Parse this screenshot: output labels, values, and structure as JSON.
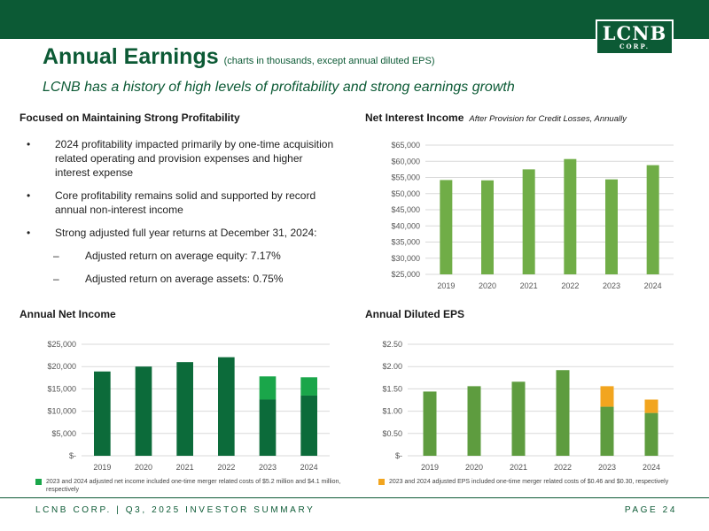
{
  "header": {
    "title": "Annual Earnings",
    "title_note": "(charts in thousands, except annual diluted EPS)",
    "subtitle": "LCNB has a history of high levels of profitability and strong earnings growth",
    "logo_main": "LCNB",
    "logo_sub": "CORP."
  },
  "profitability": {
    "heading": "Focused on Maintaining Strong Profitability",
    "bullets": [
      "2024 profitability impacted primarily by one-time acquisition related operating and provision expenses and higher interest expense",
      "Core profitability remains solid and supported by record annual non-interest income",
      "Strong adjusted full year returns at December 31, 2024:"
    ],
    "bullet_symbol": "•",
    "sub_symbol": "–",
    "sub_bullets": [
      "Adjusted return on average equity: 7.17%",
      "Adjusted return on average assets: 0.75%"
    ]
  },
  "nii_section": {
    "heading": "Net Interest Income",
    "heading_note": "After Provision for Credit Losses, Annually"
  },
  "ni_section": {
    "heading": "Annual Net Income"
  },
  "eps_section": {
    "heading": "Annual Diluted EPS"
  },
  "notes": {
    "ni": "2023 and 2024 adjusted net income included one-time merger related costs of $5.2 million and $4.1 million, respectively",
    "eps": "2023 and 2024 adjusted EPS included one-time merger related costs of $0.46 and $0.30, respectively"
  },
  "colors": {
    "brand": "#0c5a35",
    "nii_bar": "#70ad47",
    "ni_bar": "#0c6b3a",
    "ni_adj": "#1aa64a",
    "eps_bar": "#5e9c3f",
    "eps_adj": "#f2a51f"
  },
  "chart_data": [
    {
      "id": "nii",
      "type": "bar",
      "categories": [
        "2019",
        "2020",
        "2021",
        "2022",
        "2023",
        "2024"
      ],
      "values": [
        54200,
        54100,
        57500,
        60700,
        54400,
        58800
      ],
      "ylim": [
        25000,
        65000
      ],
      "yticks": [
        25000,
        30000,
        35000,
        40000,
        45000,
        50000,
        55000,
        60000,
        65000
      ],
      "ytick_labels": [
        "$25,000",
        "$30,000",
        "$35,000",
        "$40,000",
        "$45,000",
        "$50,000",
        "$55,000",
        "$60,000",
        "$65,000"
      ],
      "title": "Net Interest Income"
    },
    {
      "id": "ni",
      "type": "bar",
      "stacked": true,
      "categories": [
        "2019",
        "2020",
        "2021",
        "2022",
        "2023",
        "2024"
      ],
      "series": [
        {
          "name": "Net Income",
          "values": [
            18900,
            20000,
            21000,
            22100,
            12600,
            13500
          ]
        },
        {
          "name": "One-time merger related costs",
          "values": [
            0,
            0,
            0,
            0,
            5200,
            4100
          ]
        }
      ],
      "ylim": [
        0,
        25000
      ],
      "yticks": [
        0,
        5000,
        10000,
        15000,
        20000,
        25000
      ],
      "ytick_labels": [
        "$-",
        "$5,000",
        "$10,000",
        "$15,000",
        "$20,000",
        "$25,000"
      ],
      "title": "Annual Net Income"
    },
    {
      "id": "eps",
      "type": "bar",
      "stacked": true,
      "categories": [
        "2019",
        "2020",
        "2021",
        "2022",
        "2023",
        "2024"
      ],
      "series": [
        {
          "name": "Diluted EPS",
          "values": [
            1.44,
            1.56,
            1.66,
            1.92,
            1.1,
            0.96
          ]
        },
        {
          "name": "One-time merger related costs",
          "values": [
            0,
            0,
            0,
            0,
            0.46,
            0.3
          ]
        }
      ],
      "ylim": [
        0,
        2.5
      ],
      "yticks": [
        0,
        0.5,
        1.0,
        1.5,
        2.0,
        2.5
      ],
      "ytick_labels": [
        "$-",
        "$0.50",
        "$1.00",
        "$1.50",
        "$2.00",
        "$2.50"
      ],
      "title": "Annual Diluted EPS"
    }
  ],
  "footer": {
    "left": "LCNB CORP. | Q3, 2025 INVESTOR SUMMARY",
    "page": "PAGE 24"
  }
}
